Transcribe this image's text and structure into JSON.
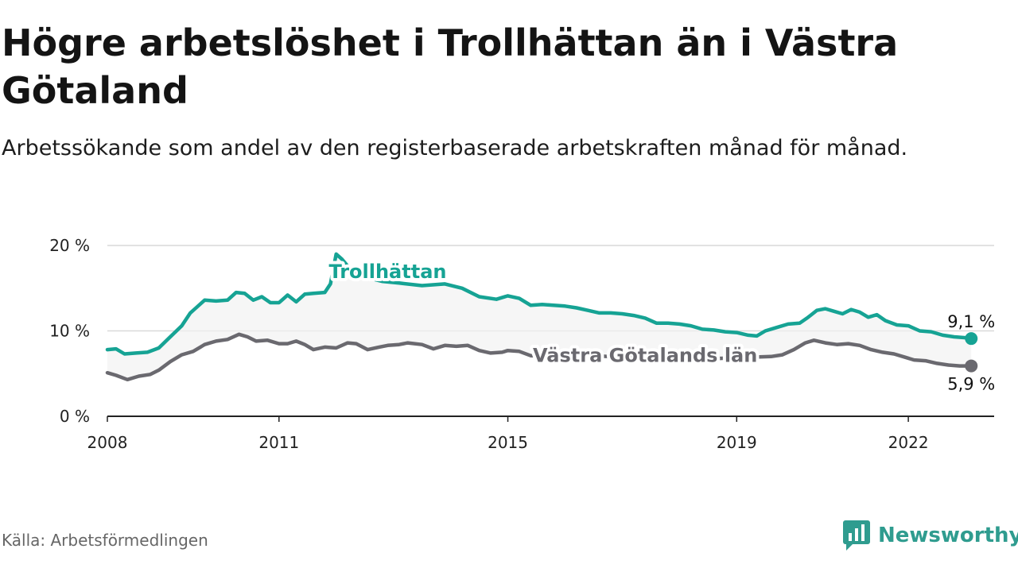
{
  "chart_data": {
    "type": "line",
    "title": "Högre arbetslöshet i Trollhättan än i Västra Götaland",
    "subtitle": "Arbetssökande som andel av den registerbaserade arbetskraften månad för månad.",
    "xlabel": "",
    "ylabel": "",
    "xlim": [
      2008,
      2023.5
    ],
    "ylim": [
      0,
      20
    ],
    "x_ticks": [
      {
        "value": 2008,
        "label": "2008"
      },
      {
        "value": 2011,
        "label": "2011"
      },
      {
        "value": 2015,
        "label": "2015"
      },
      {
        "value": 2019,
        "label": "2019"
      },
      {
        "value": 2022,
        "label": "2022"
      }
    ],
    "y_ticks": [
      {
        "value": 0,
        "label": "0 %"
      },
      {
        "value": 10,
        "label": "10 %"
      },
      {
        "value": 20,
        "label": "20 %"
      }
    ],
    "series": [
      {
        "name": "Trollhättan",
        "color": "#16a394",
        "end_label": "9,1 %",
        "points": [
          [
            2008.0,
            7.8
          ],
          [
            2008.15,
            7.9
          ],
          [
            2008.3,
            7.3
          ],
          [
            2008.5,
            7.4
          ],
          [
            2008.7,
            7.5
          ],
          [
            2008.9,
            8.0
          ],
          [
            2009.1,
            9.3
          ],
          [
            2009.3,
            10.6
          ],
          [
            2009.45,
            12.1
          ],
          [
            2009.55,
            12.7
          ],
          [
            2009.7,
            13.6
          ],
          [
            2009.9,
            13.5
          ],
          [
            2010.1,
            13.6
          ],
          [
            2010.25,
            14.5
          ],
          [
            2010.4,
            14.4
          ],
          [
            2010.55,
            13.6
          ],
          [
            2010.7,
            14.0
          ],
          [
            2010.85,
            13.3
          ],
          [
            2011.0,
            13.3
          ],
          [
            2011.15,
            14.2
          ],
          [
            2011.3,
            13.4
          ],
          [
            2011.45,
            14.3
          ],
          [
            2011.6,
            14.4
          ],
          [
            2011.8,
            14.5
          ],
          [
            2011.9,
            15.5
          ],
          [
            2012.0,
            19.0
          ],
          [
            2012.1,
            18.4
          ],
          [
            2012.25,
            17.2
          ],
          [
            2012.5,
            16.3
          ],
          [
            2012.8,
            15.8
          ],
          [
            2013.1,
            15.6
          ],
          [
            2013.5,
            15.3
          ],
          [
            2013.9,
            15.5
          ],
          [
            2014.2,
            15.0
          ],
          [
            2014.5,
            14.0
          ],
          [
            2014.8,
            13.7
          ],
          [
            2015.0,
            14.1
          ],
          [
            2015.2,
            13.8
          ],
          [
            2015.4,
            13.0
          ],
          [
            2015.6,
            13.1
          ],
          [
            2015.8,
            13.0
          ],
          [
            2016.0,
            12.9
          ],
          [
            2016.2,
            12.7
          ],
          [
            2016.4,
            12.4
          ],
          [
            2016.6,
            12.1
          ],
          [
            2016.8,
            12.1
          ],
          [
            2017.0,
            12.0
          ],
          [
            2017.2,
            11.8
          ],
          [
            2017.4,
            11.5
          ],
          [
            2017.6,
            10.9
          ],
          [
            2017.8,
            10.9
          ],
          [
            2018.0,
            10.8
          ],
          [
            2018.2,
            10.6
          ],
          [
            2018.4,
            10.2
          ],
          [
            2018.6,
            10.1
          ],
          [
            2018.8,
            9.9
          ],
          [
            2019.0,
            9.8
          ],
          [
            2019.2,
            9.5
          ],
          [
            2019.35,
            9.4
          ],
          [
            2019.5,
            10.0
          ],
          [
            2019.7,
            10.4
          ],
          [
            2019.9,
            10.8
          ],
          [
            2020.1,
            10.9
          ],
          [
            2020.25,
            11.6
          ],
          [
            2020.4,
            12.4
          ],
          [
            2020.55,
            12.6
          ],
          [
            2020.7,
            12.3
          ],
          [
            2020.85,
            12.0
          ],
          [
            2021.0,
            12.5
          ],
          [
            2021.15,
            12.2
          ],
          [
            2021.3,
            11.6
          ],
          [
            2021.45,
            11.9
          ],
          [
            2021.6,
            11.2
          ],
          [
            2021.8,
            10.7
          ],
          [
            2022.0,
            10.6
          ],
          [
            2022.2,
            10.0
          ],
          [
            2022.4,
            9.9
          ],
          [
            2022.6,
            9.5
          ],
          [
            2022.8,
            9.3
          ],
          [
            2023.0,
            9.2
          ],
          [
            2023.1,
            9.1
          ]
        ]
      },
      {
        "name": "Västra Götalands län",
        "color": "#6a696f",
        "end_label": "5,9 %",
        "points": [
          [
            2008.0,
            5.1
          ],
          [
            2008.15,
            4.8
          ],
          [
            2008.35,
            4.3
          ],
          [
            2008.55,
            4.7
          ],
          [
            2008.75,
            4.9
          ],
          [
            2008.9,
            5.4
          ],
          [
            2009.1,
            6.4
          ],
          [
            2009.3,
            7.2
          ],
          [
            2009.5,
            7.6
          ],
          [
            2009.7,
            8.4
          ],
          [
            2009.9,
            8.8
          ],
          [
            2010.1,
            9.0
          ],
          [
            2010.3,
            9.6
          ],
          [
            2010.45,
            9.3
          ],
          [
            2010.6,
            8.8
          ],
          [
            2010.8,
            8.9
          ],
          [
            2011.0,
            8.5
          ],
          [
            2011.15,
            8.5
          ],
          [
            2011.3,
            8.8
          ],
          [
            2011.45,
            8.4
          ],
          [
            2011.6,
            7.8
          ],
          [
            2011.8,
            8.1
          ],
          [
            2012.0,
            8.0
          ],
          [
            2012.2,
            8.6
          ],
          [
            2012.35,
            8.5
          ],
          [
            2012.55,
            7.8
          ],
          [
            2012.75,
            8.1
          ],
          [
            2012.9,
            8.3
          ],
          [
            2013.1,
            8.4
          ],
          [
            2013.25,
            8.6
          ],
          [
            2013.5,
            8.4
          ],
          [
            2013.7,
            7.9
          ],
          [
            2013.9,
            8.3
          ],
          [
            2014.1,
            8.2
          ],
          [
            2014.3,
            8.3
          ],
          [
            2014.5,
            7.7
          ],
          [
            2014.7,
            7.4
          ],
          [
            2014.9,
            7.5
          ],
          [
            2015.0,
            7.7
          ],
          [
            2015.2,
            7.6
          ],
          [
            2015.4,
            7.1
          ],
          [
            2015.6,
            7.1
          ],
          [
            2015.85,
            7.3
          ],
          [
            2016.1,
            7.2
          ],
          [
            2016.4,
            7.1
          ],
          [
            2016.8,
            7.0
          ],
          [
            2017.2,
            6.9
          ],
          [
            2017.6,
            6.8
          ],
          [
            2018.0,
            6.7
          ],
          [
            2018.4,
            6.7
          ],
          [
            2018.8,
            6.8
          ],
          [
            2019.2,
            6.9
          ],
          [
            2019.6,
            7.0
          ],
          [
            2019.8,
            7.2
          ],
          [
            2020.0,
            7.8
          ],
          [
            2020.2,
            8.6
          ],
          [
            2020.35,
            8.9
          ],
          [
            2020.55,
            8.6
          ],
          [
            2020.75,
            8.4
          ],
          [
            2020.95,
            8.5
          ],
          [
            2021.15,
            8.3
          ],
          [
            2021.35,
            7.8
          ],
          [
            2021.55,
            7.5
          ],
          [
            2021.75,
            7.3
          ],
          [
            2021.95,
            6.9
          ],
          [
            2022.1,
            6.6
          ],
          [
            2022.3,
            6.5
          ],
          [
            2022.5,
            6.2
          ],
          [
            2022.7,
            6.0
          ],
          [
            2022.9,
            5.9
          ],
          [
            2023.1,
            5.9
          ]
        ]
      }
    ],
    "legend": "inline labels"
  },
  "footer": {
    "source": "Källa: Arbetsförmedlingen",
    "brand": "Newsworthy",
    "brand_color": "#2f9c8f"
  }
}
